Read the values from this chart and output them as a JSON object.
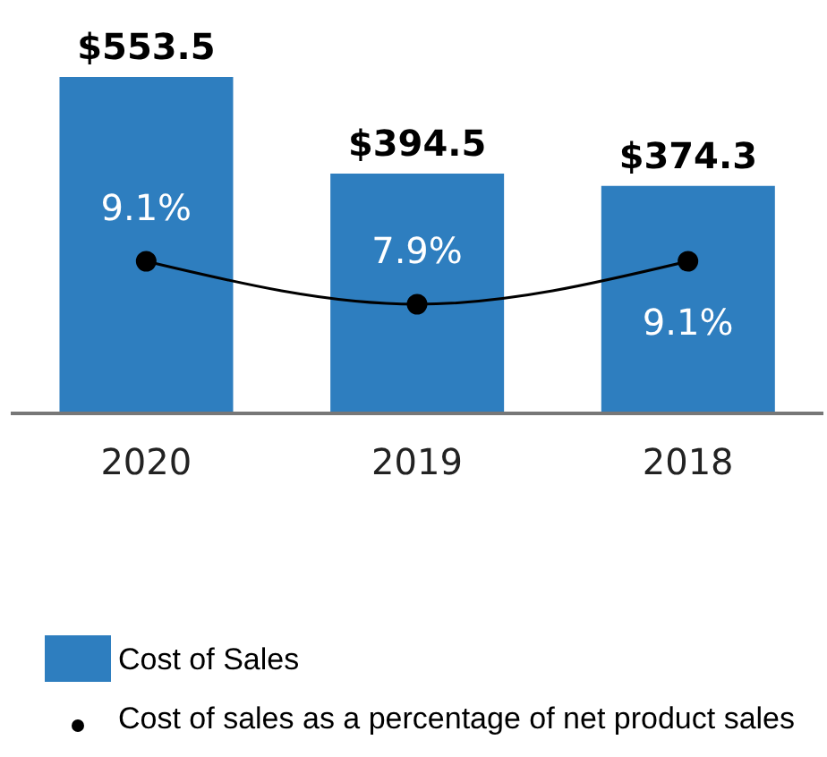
{
  "chart_data": {
    "type": "bar",
    "categories": [
      "2020",
      "2019",
      "2018"
    ],
    "series": [
      {
        "name": "Cost of Sales",
        "color": "#2e7ebf",
        "values": [
          553.5,
          394.5,
          374.3
        ],
        "value_labels": [
          "$553.5",
          "$394.5",
          "$374.3"
        ]
      },
      {
        "name": "Cost of sales as a percentage of net product sales",
        "type": "line",
        "axis": "y2",
        "color": "#000000",
        "values": [
          9.1,
          7.9,
          9.1
        ],
        "value_labels": [
          "9.1%",
          "7.9%",
          "9.1%"
        ]
      }
    ],
    "y2lim": [
      4.85,
      14.25
    ],
    "marker": "circle",
    "legend": "bottom left",
    "grid": false,
    "tick_labels": "x"
  }
}
